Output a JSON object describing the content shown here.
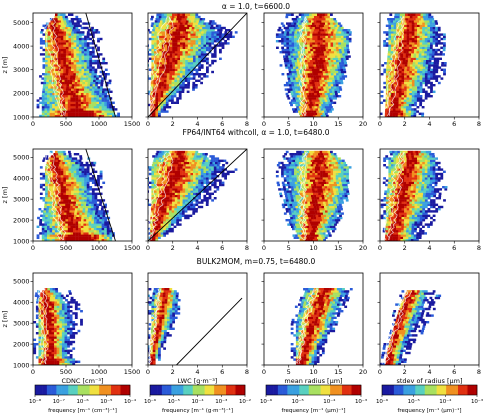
{
  "rows": [
    {
      "title": "α = 1.0, t=6600.0"
    },
    {
      "title": "FP64/INT64 withcoll, α = 1.0, t=6480.0"
    },
    {
      "title": "BULK2MOM, m=0.75, t=6480.0"
    }
  ],
  "ylabel": "z [m]",
  "yticks": [
    "1000",
    "2000",
    "3000",
    "4000",
    "5000"
  ],
  "columns": [
    {
      "xlabel": "CDNC [cm⁻³]",
      "xticks": [
        "0",
        "500",
        "1000",
        "1500"
      ],
      "xlim": [
        0,
        1500
      ],
      "colorbar": {
        "ticks": [
          "10⁻⁸",
          "10⁻⁷",
          "10⁻⁶",
          "10⁻⁵",
          "10⁻⁴"
        ],
        "label": "frequency [m⁻¹ (cm⁻³)⁻¹]"
      }
    },
    {
      "xlabel": "LWC [g·m⁻³]",
      "xticks": [
        "0",
        "2",
        "4",
        "6",
        "8"
      ],
      "xlim": [
        0,
        8
      ],
      "colorbar": {
        "ticks": [
          "10⁻⁶",
          "10⁻⁵",
          "10⁻⁴",
          "10⁻³",
          "10⁻²"
        ],
        "label": "frequency [m⁻¹ (g·m⁻³)⁻¹]"
      }
    },
    {
      "xlabel": "mean radius [μm]",
      "xticks": [
        "0",
        "5",
        "10",
        "15",
        "20"
      ],
      "xlim": [
        0,
        20
      ],
      "colorbar": {
        "ticks": [
          "10⁻⁶",
          "10⁻⁵",
          "10⁻⁴",
          "10⁻³"
        ],
        "label": "frequency [m⁻¹ (μm)⁻¹]"
      }
    },
    {
      "xlabel": "stdev of radius [μm]",
      "xticks": [
        "0",
        "2",
        "4",
        "6",
        "8"
      ],
      "xlim": [
        0,
        8
      ],
      "colorbar": {
        "ticks": [
          "10⁻⁶",
          "10⁻⁵",
          "10⁻⁴",
          "10⁻³"
        ],
        "label": "frequency [m⁻¹ (μm)⁻¹]"
      }
    }
  ],
  "chart_data": {
    "type": "heatmap",
    "ylim": [
      1000,
      5400
    ],
    "colormap": [
      "#1a1aa0",
      "#2a5ad8",
      "#3aa0e0",
      "#58d0c0",
      "#a8e060",
      "#f0e040",
      "#f09020",
      "#e03010",
      "#b00000"
    ],
    "panels": [
      {
        "row": 0,
        "col": 0,
        "spread": [
          [
            1000,
            100,
            1250
          ],
          [
            2000,
            100,
            1150
          ],
          [
            3000,
            150,
            1080
          ],
          [
            4000,
            150,
            1000
          ],
          [
            4600,
            150,
            950
          ],
          [
            5000,
            200,
            800
          ],
          [
            5300,
            300,
            600
          ]
        ],
        "peak": [
          [
            1000,
            700
          ],
          [
            2500,
            500
          ],
          [
            4000,
            400
          ],
          [
            5000,
            300
          ]
        ],
        "line": [
          [
            1250,
            1000
          ],
          [
            800,
            5400
          ]
        ]
      },
      {
        "row": 0,
        "col": 1,
        "spread": [
          [
            1000,
            0,
            0.5
          ],
          [
            2000,
            0,
            3
          ],
          [
            3000,
            0.1,
            5
          ],
          [
            4000,
            0.1,
            6
          ],
          [
            4600,
            0.1,
            7
          ],
          [
            5000,
            0.3,
            5.5
          ],
          [
            5300,
            0.5,
            4
          ]
        ],
        "peak": [
          [
            1000,
            0.2
          ],
          [
            2500,
            1
          ],
          [
            4000,
            2
          ],
          [
            5000,
            2.5
          ]
        ],
        "line": [
          [
            0,
            1000
          ],
          [
            8,
            5400
          ]
        ]
      },
      {
        "row": 0,
        "col": 2,
        "spread": [
          [
            1000,
            7,
            12
          ],
          [
            2000,
            5,
            15
          ],
          [
            3000,
            4,
            16
          ],
          [
            4000,
            3,
            17
          ],
          [
            4600,
            3,
            17
          ],
          [
            5000,
            4,
            15
          ],
          [
            5300,
            5,
            13
          ]
        ],
        "peak": [
          [
            1000,
            9
          ],
          [
            2500,
            10
          ],
          [
            4000,
            11
          ],
          [
            5000,
            11
          ]
        ],
        "line": null
      },
      {
        "row": 0,
        "col": 3,
        "spread": [
          [
            1000,
            0.2,
            3
          ],
          [
            2000,
            0.3,
            4
          ],
          [
            3000,
            0.3,
            5
          ],
          [
            4000,
            0.5,
            5
          ],
          [
            4600,
            0.5,
            5
          ],
          [
            5000,
            0.5,
            4.5
          ],
          [
            5300,
            1,
            4
          ]
        ],
        "peak": [
          [
            1000,
            0.8
          ],
          [
            2500,
            1.5
          ],
          [
            4000,
            2
          ],
          [
            5000,
            2.5
          ]
        ],
        "line": null
      },
      {
        "row": 1,
        "col": 0,
        "spread": [
          [
            1000,
            100,
            1200
          ],
          [
            2000,
            100,
            1100
          ],
          [
            3000,
            150,
            1050
          ],
          [
            4000,
            150,
            1000
          ],
          [
            4600,
            150,
            950
          ],
          [
            5000,
            200,
            800
          ],
          [
            5300,
            300,
            600
          ]
        ],
        "peak": [
          [
            1000,
            700
          ],
          [
            2500,
            500
          ],
          [
            4000,
            400
          ],
          [
            5000,
            300
          ]
        ],
        "line": [
          [
            1250,
            1000
          ],
          [
            800,
            5400
          ]
        ]
      },
      {
        "row": 1,
        "col": 1,
        "spread": [
          [
            1000,
            0,
            0.5
          ],
          [
            2000,
            0,
            3
          ],
          [
            3000,
            0.1,
            5
          ],
          [
            4000,
            0.1,
            6
          ],
          [
            4600,
            0.1,
            7
          ],
          [
            5000,
            0.3,
            5.5
          ],
          [
            5300,
            0.5,
            4
          ]
        ],
        "peak": [
          [
            1000,
            0.2
          ],
          [
            2500,
            1
          ],
          [
            4000,
            2
          ],
          [
            5000,
            2.5
          ]
        ],
        "line": [
          [
            0,
            1000
          ],
          [
            8,
            5400
          ]
        ]
      },
      {
        "row": 1,
        "col": 2,
        "spread": [
          [
            1000,
            7,
            12
          ],
          [
            2000,
            5,
            15
          ],
          [
            3000,
            4,
            16
          ],
          [
            4000,
            3,
            17
          ],
          [
            4600,
            3,
            17
          ],
          [
            5000,
            4,
            15
          ],
          [
            5300,
            5,
            13
          ]
        ],
        "peak": [
          [
            1000,
            9
          ],
          [
            2500,
            10
          ],
          [
            4000,
            11
          ],
          [
            5000,
            11
          ]
        ],
        "line": null
      },
      {
        "row": 1,
        "col": 3,
        "spread": [
          [
            1000,
            0.2,
            3
          ],
          [
            2000,
            0.3,
            4
          ],
          [
            3000,
            0.3,
            5
          ],
          [
            4000,
            0.5,
            5
          ],
          [
            4600,
            0.5,
            5
          ],
          [
            5000,
            0.5,
            4.5
          ],
          [
            5300,
            1,
            4
          ]
        ],
        "peak": [
          [
            1000,
            0.8
          ],
          [
            2500,
            1.5
          ],
          [
            4000,
            2
          ],
          [
            5000,
            2.5
          ]
        ],
        "line": null
      },
      {
        "row": 2,
        "col": 0,
        "spread": [
          [
            1000,
            50,
            650
          ],
          [
            2000,
            50,
            550
          ],
          [
            3000,
            50,
            700
          ],
          [
            4000,
            50,
            650
          ],
          [
            4500,
            80,
            550
          ],
          [
            4700,
            150,
            400
          ]
        ],
        "peak": [
          [
            1000,
            250
          ],
          [
            2500,
            250
          ],
          [
            4000,
            200
          ],
          [
            4600,
            150
          ]
        ],
        "line": null
      },
      {
        "row": 2,
        "col": 1,
        "spread": [
          [
            1000,
            0,
            0.3
          ],
          [
            2000,
            0,
            1.2
          ],
          [
            3000,
            0.1,
            2
          ],
          [
            4000,
            0.1,
            2.3
          ],
          [
            4500,
            0.2,
            2.3
          ],
          [
            4700,
            0.3,
            1.8
          ]
        ],
        "peak": [
          [
            1000,
            0.1
          ],
          [
            2500,
            0.6
          ],
          [
            4000,
            1.2
          ],
          [
            4600,
            1.3
          ]
        ],
        "line": [
          [
            2.3,
            1000
          ],
          [
            7.6,
            4200
          ]
        ]
      },
      {
        "row": 2,
        "col": 2,
        "spread": [
          [
            1000,
            6,
            10
          ],
          [
            2000,
            6,
            12
          ],
          [
            3000,
            6,
            14
          ],
          [
            4000,
            7,
            16
          ],
          [
            4700,
            8,
            17
          ]
        ],
        "peak": [
          [
            1000,
            7
          ],
          [
            2500,
            9
          ],
          [
            4000,
            11
          ],
          [
            4600,
            12
          ]
        ],
        "line": null
      },
      {
        "row": 2,
        "col": 3,
        "spread": [
          [
            1000,
            0.2,
            1.5
          ],
          [
            2000,
            0.5,
            2.5
          ],
          [
            3000,
            1,
            3.5
          ],
          [
            4000,
            1.5,
            4.5
          ],
          [
            4600,
            2,
            4.5
          ]
        ],
        "peak": [
          [
            1000,
            0.5
          ],
          [
            2500,
            1.2
          ],
          [
            4000,
            2
          ],
          [
            4600,
            2.5
          ]
        ],
        "line": null
      }
    ]
  }
}
